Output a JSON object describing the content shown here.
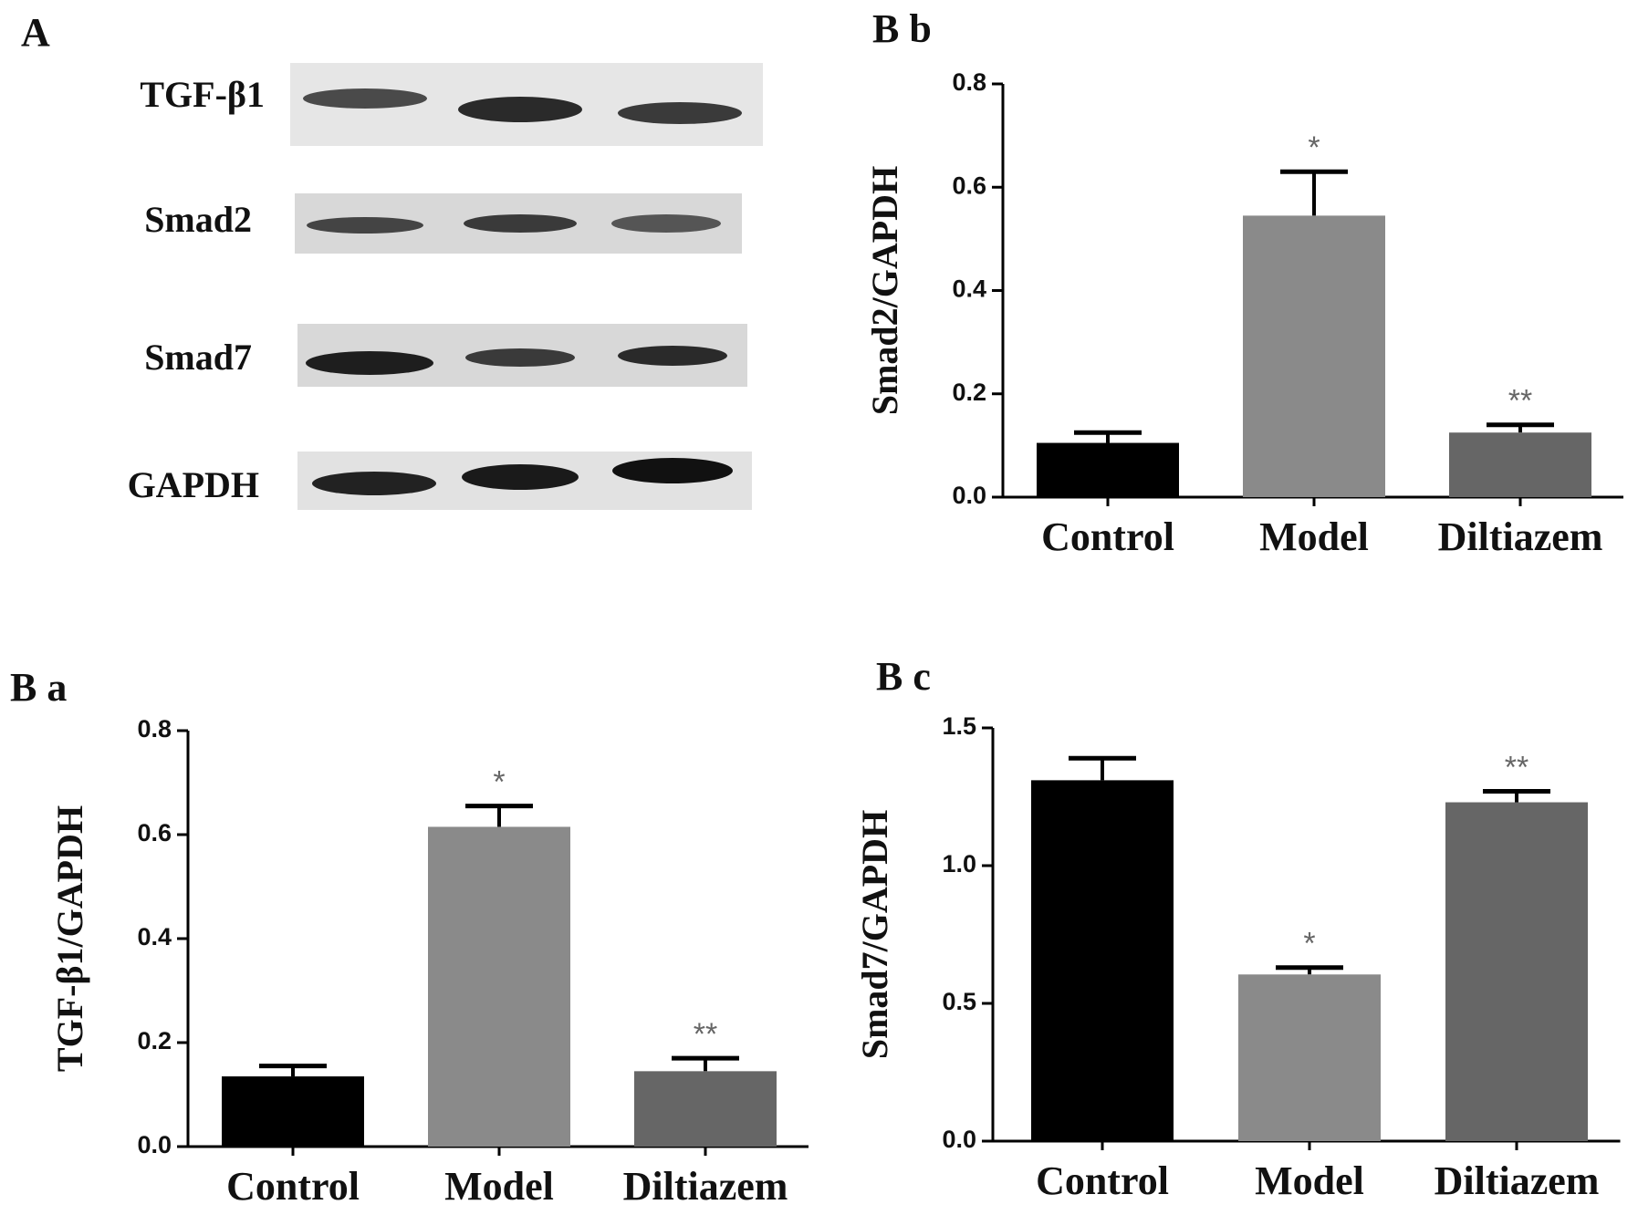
{
  "blot": {
    "label": "A",
    "rows": [
      "TGF-β1",
      "Smad2",
      "Smad7",
      "GAPDH"
    ]
  },
  "chart_data": [
    {
      "type": "bar",
      "panel": "B b",
      "ylabel": "Smad2/GAPDH",
      "categories": [
        "Control",
        "Model",
        "Diltiazem"
      ],
      "values": [
        0.105,
        0.545,
        0.125
      ],
      "errors": [
        0.02,
        0.085,
        0.015
      ],
      "annotations": [
        null,
        "*",
        "**"
      ],
      "colors": [
        "#000000",
        "#8a8a8a",
        "#666666"
      ],
      "ylim": [
        0,
        0.8
      ],
      "yticks": [
        {
          "value": 0,
          "label": "0.0"
        },
        0.2,
        0.4,
        0.6,
        0.8
      ]
    },
    {
      "type": "bar",
      "panel": "B a",
      "ylabel": "TGF-β1/GAPDH",
      "categories": [
        "Control",
        "Model",
        "Diltiazem"
      ],
      "values": [
        0.135,
        0.615,
        0.145
      ],
      "errors": [
        0.02,
        0.04,
        0.025
      ],
      "annotations": [
        null,
        "*",
        "**"
      ],
      "colors": [
        "#000000",
        "#8a8a8a",
        "#666666"
      ],
      "ylim": [
        0,
        0.8
      ],
      "yticks": [
        {
          "value": 0,
          "label": "0.0"
        },
        0.2,
        0.4,
        0.6,
        0.8
      ]
    },
    {
      "type": "bar",
      "panel": "B c",
      "ylabel": "Smad7/GAPDH",
      "categories": [
        "Control",
        "Model",
        "Diltiazem"
      ],
      "values": [
        1.31,
        0.605,
        1.23
      ],
      "errors": [
        0.08,
        0.025,
        0.04
      ],
      "annotations": [
        null,
        "*",
        "**"
      ],
      "colors": [
        "#000000",
        "#8a8a8a",
        "#666666"
      ],
      "ylim": [
        0,
        1.5
      ],
      "yticks": [
        {
          "value": 0,
          "label": "0.0"
        },
        0.5,
        {
          "value": 1,
          "label": "1.0"
        },
        1.5
      ]
    }
  ]
}
